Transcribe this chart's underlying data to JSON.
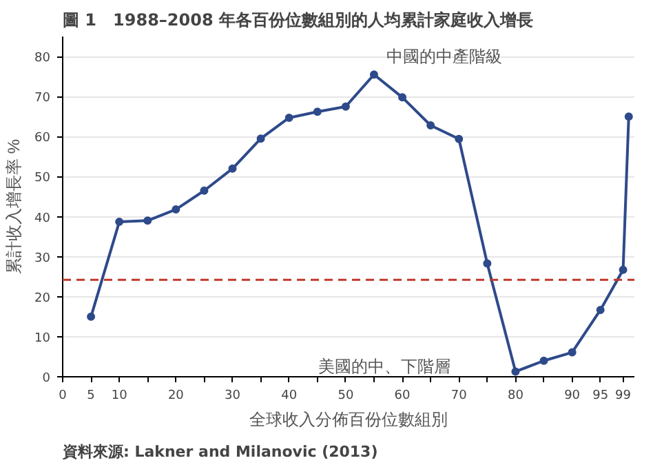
{
  "chart_data": {
    "type": "line",
    "title": "圖 1　1988–2008 年各百份位數組別的人均累計家庭收入增長",
    "xlabel": "全球收入分佈百份位數組別",
    "ylabel": "累計收入增長率 %",
    "x": [
      5,
      10,
      15,
      20,
      25,
      30,
      35,
      40,
      45,
      50,
      55,
      60,
      65,
      70,
      75,
      80,
      85,
      90,
      95,
      99,
      100
    ],
    "series": [
      {
        "color": "#2e4a8a",
        "values": [
          15,
          38.7,
          39,
          41.8,
          46.5,
          52,
          59.5,
          64.7,
          66.2,
          67.5,
          75.5,
          69.8,
          62.8,
          59.4,
          28.3,
          1.3,
          4,
          6.1,
          16.7,
          26.7,
          65
        ]
      }
    ],
    "marker": "circle",
    "line_style": "solid",
    "grid": "y",
    "xlim": [
      0,
      101
    ],
    "ylim": [
      0,
      85
    ],
    "xticks": [
      0,
      5,
      10,
      {
        "value": 15,
        "label": null
      },
      20,
      {
        "value": 25,
        "label": null
      },
      30,
      {
        "value": 35,
        "label": null
      },
      40,
      {
        "value": 45,
        "label": null
      },
      50,
      {
        "value": 55,
        "label": null
      },
      60,
      {
        "value": 65,
        "label": null
      },
      70,
      {
        "value": 75,
        "label": null
      },
      80,
      {
        "value": 85,
        "label": null
      },
      90,
      95,
      99
    ],
    "yticks": [
      0,
      10,
      20,
      30,
      40,
      50,
      60,
      70,
      80
    ],
    "ref_lines": [
      {
        "axis": "y",
        "value": 24.2,
        "color": "#c0392b",
        "line_style": "dashed"
      }
    ],
    "annotations": [
      "中國的中產階級",
      "美國的中、下階層",
      "資料來源: Lakner and Milanovic (2013)"
    ]
  }
}
